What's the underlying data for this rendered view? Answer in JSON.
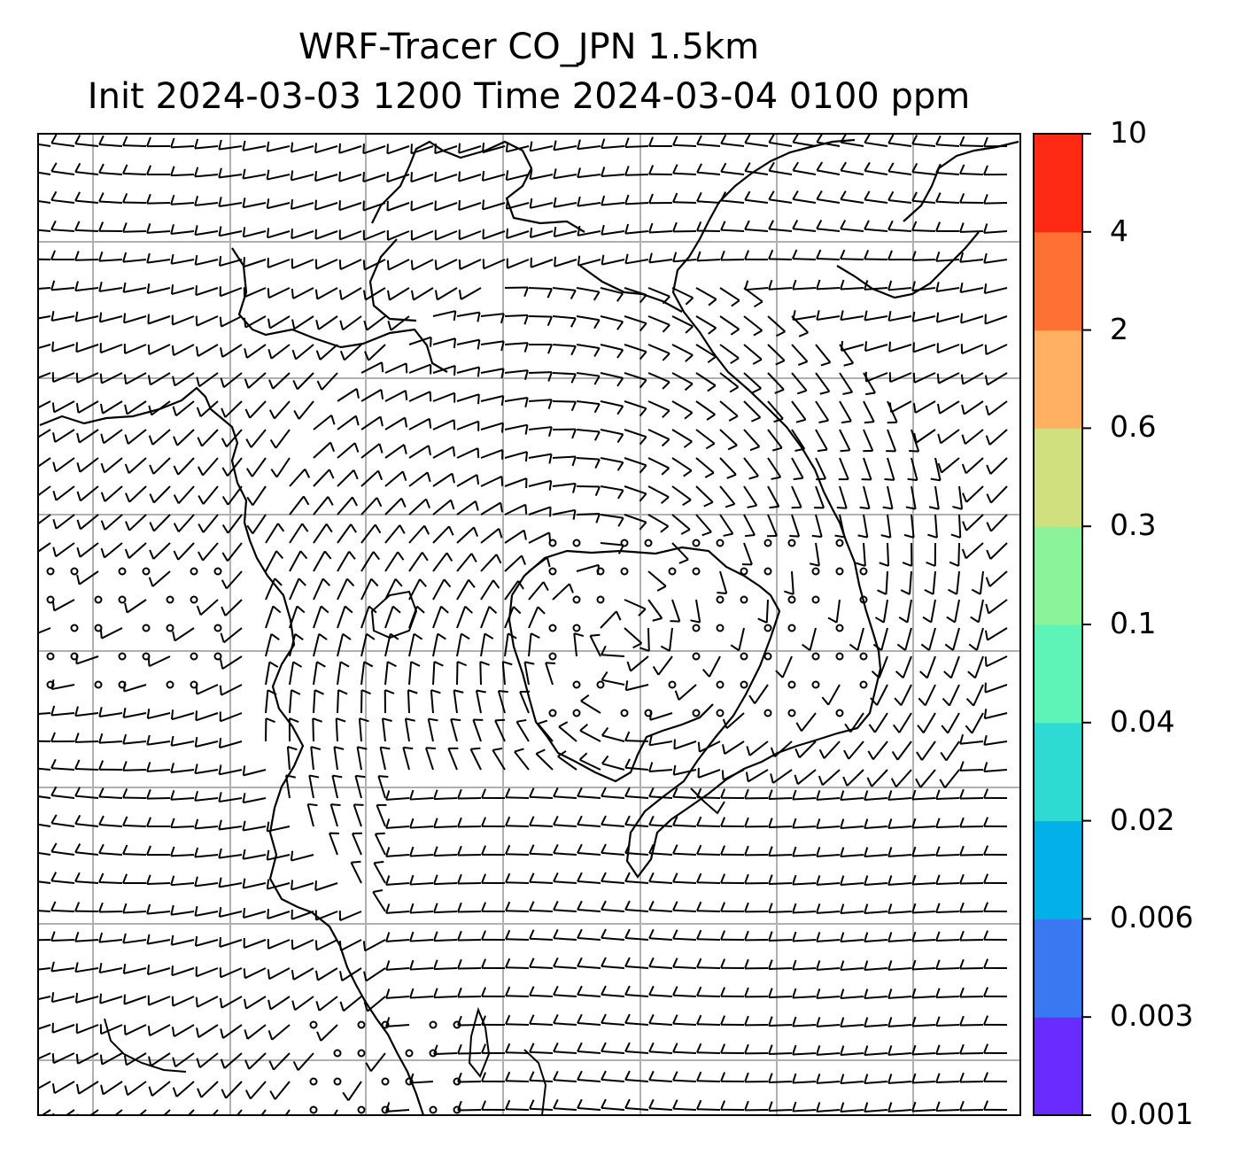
{
  "title": {
    "line1": "WRF-Tracer CO_JPN 1.5km",
    "line2": "Init 2024-03-03 1200 Time 2024-03-04 0100 ppm"
  },
  "colorbar": {
    "levels": [
      "0.001",
      "0.003",
      "0.006",
      "0.02",
      "0.04",
      "0.1",
      "0.3",
      "0.6",
      "2",
      "4",
      "10"
    ],
    "colors": [
      "#6a2bff",
      "#3a78f2",
      "#04b0e8",
      "#2ddbd3",
      "#5ef4b8",
      "#8bf49a",
      "#d0e07e",
      "#ffb060",
      "#ff7034",
      "#ff2a14"
    ]
  },
  "map": {
    "grid_color": "#b0b0b0",
    "coastline_color": "#000000",
    "barb_color": "#000000"
  }
}
